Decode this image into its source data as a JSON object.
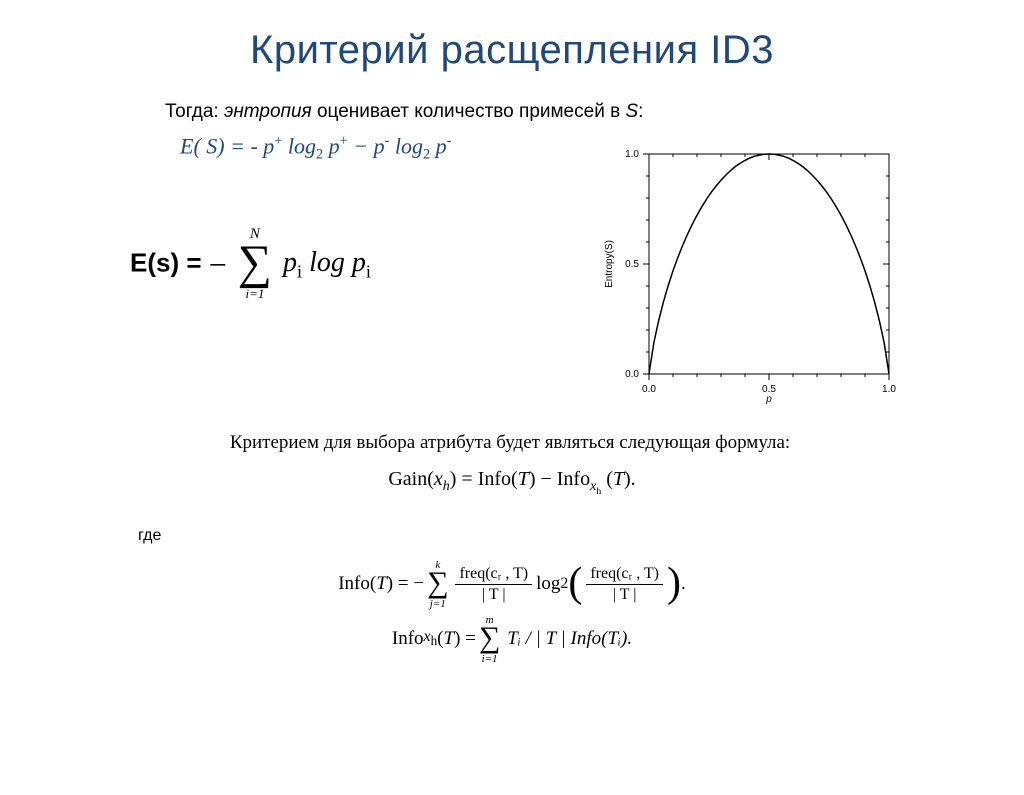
{
  "title": {
    "text": "Критерий расщепления ID3",
    "color": "#1f497d"
  },
  "intro": {
    "prefix": "Тогда: ",
    "emph": "энтропия",
    "rest": " оценивает количество примесей в ",
    "setvar": "S",
    "suffix": ":",
    "color": "#1f497d"
  },
  "binary_entropy": {
    "lhs": "E( S) = ",
    "term1_a": "- p",
    "term1_sup": "+",
    "term1_b": " log",
    "term1_sub": "2",
    "term1_c": " p",
    "term1_sup2": "+",
    "minus": " − ",
    "term2_a": "p",
    "term2_sup": "-",
    "term2_b": " log",
    "term2_sub": "2",
    "term2_c": " p",
    "term2_sup2": "-",
    "color": "#1f497d"
  },
  "sum_entropy": {
    "lhs": "E(s) = ",
    "neg": "−",
    "upper": "N",
    "lower": "i=1",
    "body_a": "p",
    "body_sub1": "i",
    "body_b": " log ",
    "body_c": "p",
    "body_sub2": "i"
  },
  "chart": {
    "type": "line",
    "xlabel": "p",
    "ylabel": "Entropy(S)",
    "xlim": [
      0.0,
      1.0
    ],
    "ylim": [
      0.0,
      1.0
    ],
    "xtick_step": 0.5,
    "ytick_step": 0.5,
    "xticks": [
      "0.0",
      "0.5",
      "1.0"
    ],
    "yticks": [
      "0.0",
      "0.5",
      "1.0"
    ],
    "axis_color": "#000000",
    "line_color": "#000000",
    "line_width": 1.5,
    "background": "#ffffff",
    "label_fontsize": 10,
    "points": [
      [
        0.0,
        0.0
      ],
      [
        0.02,
        0.141
      ],
      [
        0.04,
        0.242
      ],
      [
        0.06,
        0.327
      ],
      [
        0.08,
        0.402
      ],
      [
        0.1,
        0.469
      ],
      [
        0.12,
        0.529
      ],
      [
        0.14,
        0.584
      ],
      [
        0.16,
        0.634
      ],
      [
        0.18,
        0.68
      ],
      [
        0.2,
        0.722
      ],
      [
        0.22,
        0.76
      ],
      [
        0.24,
        0.795
      ],
      [
        0.26,
        0.827
      ],
      [
        0.28,
        0.855
      ],
      [
        0.3,
        0.881
      ],
      [
        0.32,
        0.904
      ],
      [
        0.34,
        0.925
      ],
      [
        0.36,
        0.943
      ],
      [
        0.38,
        0.958
      ],
      [
        0.4,
        0.971
      ],
      [
        0.42,
        0.982
      ],
      [
        0.44,
        0.99
      ],
      [
        0.46,
        0.995
      ],
      [
        0.48,
        0.999
      ],
      [
        0.5,
        1.0
      ],
      [
        0.52,
        0.999
      ],
      [
        0.54,
        0.995
      ],
      [
        0.56,
        0.99
      ],
      [
        0.58,
        0.982
      ],
      [
        0.6,
        0.971
      ],
      [
        0.62,
        0.958
      ],
      [
        0.64,
        0.943
      ],
      [
        0.66,
        0.925
      ],
      [
        0.68,
        0.904
      ],
      [
        0.7,
        0.881
      ],
      [
        0.72,
        0.855
      ],
      [
        0.74,
        0.827
      ],
      [
        0.76,
        0.795
      ],
      [
        0.78,
        0.76
      ],
      [
        0.8,
        0.722
      ],
      [
        0.82,
        0.68
      ],
      [
        0.84,
        0.634
      ],
      [
        0.86,
        0.584
      ],
      [
        0.88,
        0.529
      ],
      [
        0.9,
        0.469
      ],
      [
        0.92,
        0.402
      ],
      [
        0.94,
        0.327
      ],
      [
        0.96,
        0.242
      ],
      [
        0.98,
        0.141
      ],
      [
        1.0,
        0.0
      ]
    ]
  },
  "criterion_text": "Критерием для выбора атрибута будет являться следующая формула:",
  "gain": {
    "lhs_a": "Gain(",
    "lhs_var": "x",
    "lhs_sub": "h",
    "lhs_b": ") = ",
    "t1_a": "Info(",
    "t1_var": "T",
    "t1_b": ") − ",
    "t2_a": "Info",
    "t2_sub_a": "x",
    "t2_sub_b": "h",
    "t2_b": " (",
    "t2_var": "T",
    "t2_c": ")."
  },
  "where_label": "где",
  "info1": {
    "lhs_a": "Info(",
    "lhs_var": "T",
    "lhs_b": ") = −",
    "upper": "k",
    "lower": "j=1",
    "frac1_num": "freq(cᵣ , T)",
    "frac1_den": "| T |",
    "mid": "   log",
    "mid_sub": "2",
    "frac2_num": "freq(cᵣ , T)",
    "frac2_den": "| T |",
    "tail": "."
  },
  "info2": {
    "lhs_a": "Info",
    "lhs_sub_a": "x",
    "lhs_sub_b": "h",
    "lhs_b": " (",
    "lhs_var": "T",
    "lhs_c": ") = ",
    "upper": "m",
    "lower": "i=1",
    "body": "Tᵢ / | T | Info(Tᵢ)."
  }
}
